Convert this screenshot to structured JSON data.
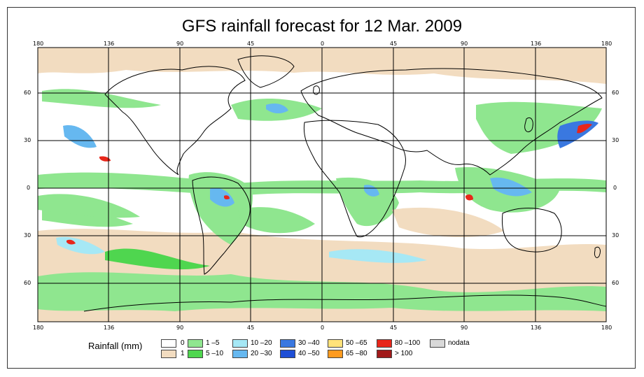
{
  "title": "GFS rainfall forecast for 12 Mar. 2009",
  "top_ticks": [
    "180",
    "136",
    "90",
    "45",
    "0",
    "45",
    "90",
    "136",
    "180"
  ],
  "bottom_ticks": [
    "180",
    "136",
    "90",
    "45",
    "0",
    "45",
    "90",
    "136",
    "180"
  ],
  "left_ticks": [
    "60",
    "30",
    "0",
    "30",
    "60"
  ],
  "right_ticks": [
    "60",
    "30",
    "0",
    "30",
    "60"
  ],
  "legend": {
    "title": "Rainfall (mm)",
    "items": [
      {
        "label": "0",
        "color": "#ffffff"
      },
      {
        "label": "1",
        "color": "#f2dcc0"
      },
      {
        "label": "1 –5",
        "color": "#8fe68f"
      },
      {
        "label": "5 –10",
        "color": "#4fd64f"
      },
      {
        "label": "10 –20",
        "color": "#a6e8f5"
      },
      {
        "label": "20 –30",
        "color": "#66b8f0"
      },
      {
        "label": "30 –40",
        "color": "#3a78e0"
      },
      {
        "label": "40 –50",
        "color": "#1f4fd6"
      },
      {
        "label": "50 –65",
        "color": "#ffe27a"
      },
      {
        "label": "65 –80",
        "color": "#ff9b1f"
      },
      {
        "label": "80 –100",
        "color": "#e8261a"
      },
      {
        "label": "> 100",
        "color": "#a11a1a"
      },
      {
        "label": "nodata",
        "color": "#d9d9d9"
      }
    ]
  }
}
